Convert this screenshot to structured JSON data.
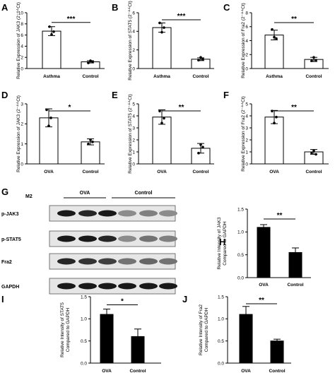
{
  "chart_data": [
    {
      "panel": "A",
      "type": "bar",
      "categories": [
        "Asthma",
        "Control"
      ],
      "values": [
        6.7,
        1.2
      ],
      "errors": [
        0.8,
        0.2
      ],
      "points": [
        [
          7.5,
          6.1,
          6.6
        ],
        [
          1.0,
          1.4,
          1.2
        ]
      ],
      "ylabel": "Relative Expression of JAK3 (2⁻ᐞᐞCt)",
      "ylim": [
        0,
        10
      ],
      "yticks": [
        0,
        2,
        4,
        6,
        8,
        10
      ],
      "significance": "***",
      "fill": "#ffffff"
    },
    {
      "panel": "B",
      "type": "bar",
      "categories": [
        "Asthma",
        "Control"
      ],
      "values": [
        4.4,
        1.0
      ],
      "errors": [
        0.5,
        0.15
      ],
      "points": [
        [
          4.9,
          3.9,
          4.4
        ],
        [
          0.9,
          1.2,
          1.0
        ]
      ],
      "ylabel": "Relative Expression of STAT5 (2⁻ᐞᐞCt)",
      "ylim": [
        0,
        6
      ],
      "yticks": [
        0,
        2,
        4,
        6
      ],
      "significance": "***",
      "fill": "#ffffff"
    },
    {
      "panel": "C",
      "type": "bar",
      "categories": [
        "Asthma",
        "Control"
      ],
      "values": [
        4.8,
        1.3
      ],
      "errors": [
        0.7,
        0.3
      ],
      "points": [
        [
          5.6,
          4.5,
          4.3
        ],
        [
          1.1,
          1.6,
          1.2
        ]
      ],
      "ylabel": "Relative Expression of Fra2 (2⁻ᐞᐞCt)",
      "ylim": [
        0,
        8
      ],
      "yticks": [
        0,
        2,
        4,
        6,
        8
      ],
      "significance": "**",
      "fill": "#ffffff"
    },
    {
      "panel": "D",
      "type": "bar",
      "categories": [
        "OVA",
        "Control"
      ],
      "values": [
        2.3,
        1.1
      ],
      "errors": [
        0.45,
        0.15
      ],
      "points": [
        [
          2.7,
          1.9,
          2.3
        ],
        [
          1.0,
          1.2,
          1.1
        ]
      ],
      "ylabel": "Relative Expression of JAK3 (2⁻ᐞᐞCt)",
      "ylim": [
        0,
        3
      ],
      "yticks": [
        0,
        1,
        2,
        3
      ],
      "significance": "*",
      "fill": "#ffffff"
    },
    {
      "panel": "E",
      "type": "bar",
      "categories": [
        "OVA",
        "Control"
      ],
      "values": [
        3.9,
        1.3
      ],
      "errors": [
        0.6,
        0.4
      ],
      "points": [
        [
          4.4,
          3.4,
          3.8
        ],
        [
          0.9,
          1.6,
          1.4
        ]
      ],
      "ylabel": "Relative Expression of STAT5 (2⁻ᐞᐞCt)",
      "ylim": [
        0,
        5
      ],
      "yticks": [
        0,
        1,
        2,
        3,
        4,
        5
      ],
      "significance": "**",
      "fill": "#ffffff"
    },
    {
      "panel": "F",
      "type": "bar",
      "categories": [
        "OVA",
        "Control"
      ],
      "values": [
        3.9,
        1.0
      ],
      "errors": [
        0.55,
        0.2
      ],
      "points": [
        [
          4.4,
          3.4,
          3.9
        ],
        [
          0.9,
          1.1,
          0.8
        ]
      ],
      "ylabel": "Relative Expression of Fra2 (2⁻ᐞᐞCt)",
      "ylim": [
        0,
        5
      ],
      "yticks": [
        0,
        1,
        2,
        3,
        4,
        5
      ],
      "significance": "**",
      "fill": "#ffffff"
    },
    {
      "panel": "H",
      "type": "bar",
      "categories": [
        "OVA",
        "Control"
      ],
      "values": [
        1.1,
        0.55
      ],
      "errors": [
        0.06,
        0.1
      ],
      "ylabel": "Relative Intensity of JAK3 Compared to GAPDH",
      "ylim": [
        0,
        1.5
      ],
      "yticks": [
        0.0,
        0.5,
        1.0,
        1.5
      ],
      "significance": "**",
      "fill": "#000000"
    },
    {
      "panel": "I",
      "type": "bar",
      "categories": [
        "OVA",
        "Control"
      ],
      "values": [
        1.1,
        0.6
      ],
      "errors": [
        0.12,
        0.17
      ],
      "ylabel": "Relative Intensity of STAT5 Compared to GAPDH",
      "ylim": [
        0,
        1.5
      ],
      "yticks": [
        0.0,
        0.5,
        1.0,
        1.5
      ],
      "significance": "*",
      "fill": "#000000"
    },
    {
      "panel": "J",
      "type": "bar",
      "categories": [
        "OVA",
        "Control"
      ],
      "values": [
        1.1,
        0.5
      ],
      "errors": [
        0.18,
        0.04
      ],
      "ylabel": "Relative Intensity of Fra2 Compared to GAPDH",
      "ylim": [
        0,
        1.5
      ],
      "yticks": [
        0.0,
        0.5,
        1.0,
        1.5
      ],
      "significance": "**",
      "fill": "#000000"
    }
  ],
  "blot": {
    "panel": "G",
    "cell_label": "M2",
    "groups": [
      "OVA",
      "Control"
    ],
    "rows": [
      "p-JAK3",
      "p-STAT5",
      "Fra2",
      "GAPDH"
    ]
  }
}
